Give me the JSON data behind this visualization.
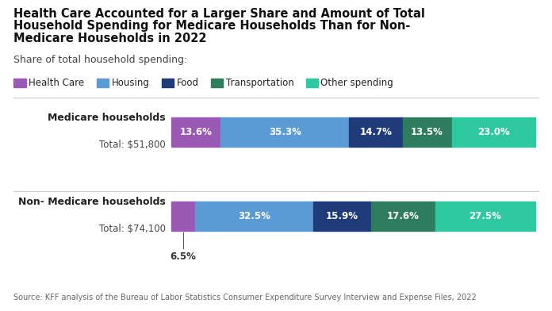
{
  "title_line1": "Health Care Accounted for a Larger Share and Amount of Total",
  "title_line2": "Household Spending for Medicare Households Than for Non-",
  "title_line3": "Medicare Households in 2022",
  "subtitle": "Share of total household spending:",
  "source": "Source: KFF analysis of the Bureau of Labor Statistics Consumer Expenditure Survey Interview and Expense Files, 2022",
  "categories": [
    "Health Care",
    "Housing",
    "Food",
    "Transportation",
    "Other spending"
  ],
  "colors": [
    "#9b59b6",
    "#5b9bd5",
    "#1f3b7a",
    "#2e7d5e",
    "#2ec9a0"
  ],
  "medicare": {
    "label": "Medicare households",
    "total": "Total: $51,800",
    "values": [
      13.6,
      35.3,
      14.7,
      13.5,
      23.0
    ]
  },
  "non_medicare": {
    "label": "Non- Medicare households",
    "total": "Total: $74,100",
    "values": [
      6.5,
      32.5,
      15.9,
      17.6,
      27.5
    ]
  },
  "bg_color": "#ffffff"
}
